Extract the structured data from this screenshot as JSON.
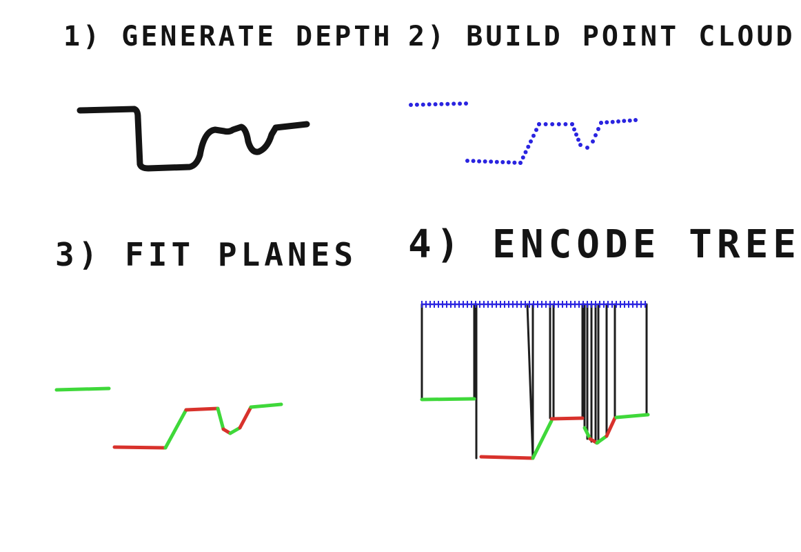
{
  "panels": [
    {
      "id": "generate-depth",
      "title": "1) GENERATE DEPTH"
    },
    {
      "id": "build-point-cloud",
      "title": "2) BUILD POINT CLOUD"
    },
    {
      "id": "fit-planes",
      "title": "3) FIT PLANES"
    },
    {
      "id": "encode-tree",
      "title": "4) ENCODE TREE"
    }
  ],
  "colors": {
    "ink": "#141414",
    "points": "#2a24e0",
    "plane_green": "#3fd83a",
    "plane_red": "#d8322c",
    "tree_lines": "#1e1e1e"
  }
}
